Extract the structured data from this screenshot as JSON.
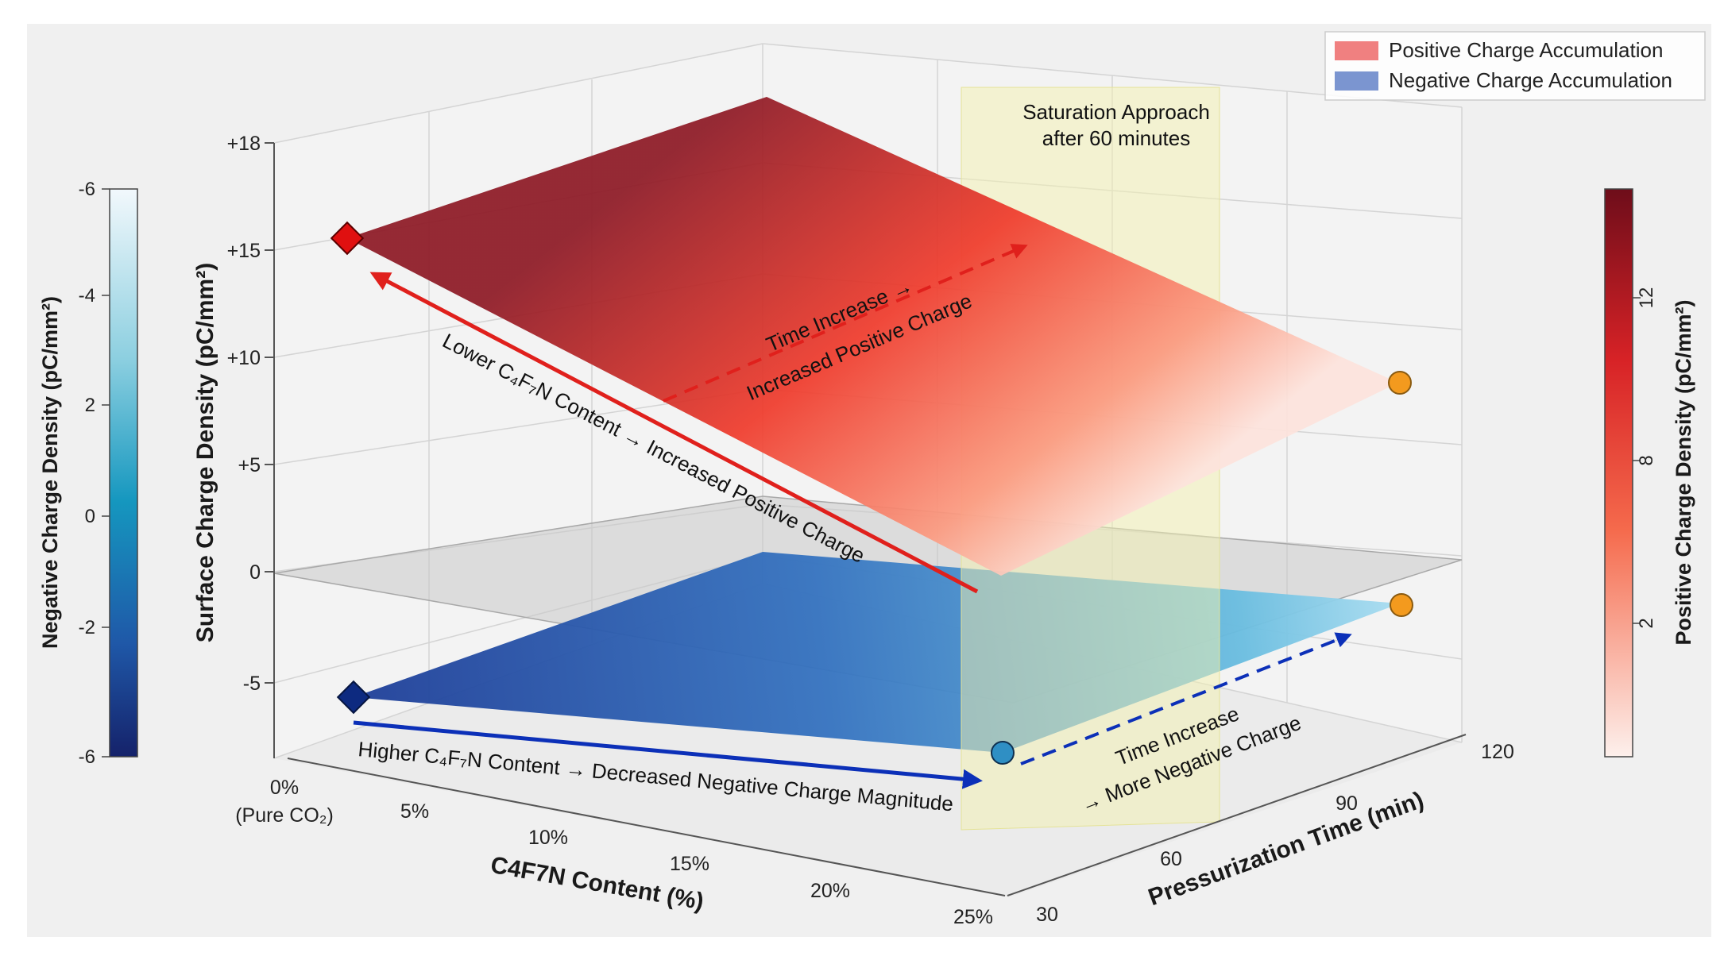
{
  "chart_data": {
    "type": "surface3d",
    "title": "",
    "xlabel": "C4F7N Content (%)",
    "ylabel": "Pressurization Time (min)",
    "zlabel": "Surface Charge Density (pC/mm²)",
    "x_ticks": [
      "0%",
      "(Pure CO₂)",
      "5%",
      "10%",
      "15%",
      "20%",
      "25%"
    ],
    "y_ticks": [
      "30",
      "60",
      "90",
      "120"
    ],
    "z_ticks": [
      "+18",
      "+15",
      "+10",
      "+5",
      "0",
      "-5"
    ],
    "xlim": [
      0,
      25
    ],
    "ylim": [
      30,
      120
    ],
    "zlim": [
      -8,
      18
    ],
    "series": [
      {
        "name": "Positive Charge Accumulation",
        "corners": [
          {
            "x": 0,
            "y": 30,
            "z": 15.5
          },
          {
            "x": 0,
            "y": 120,
            "z": 18.5
          },
          {
            "x": 25,
            "y": 120,
            "z": 9.5
          },
          {
            "x": 25,
            "y": 30,
            "z": 0
          }
        ],
        "markers": [
          {
            "x": 0,
            "y": 30,
            "z": 15.5,
            "shape": "diamond",
            "color": "#e01010"
          },
          {
            "x": 25,
            "y": 120,
            "z": 9.5,
            "shape": "circle",
            "color": "#f39a1e"
          }
        ]
      },
      {
        "name": "Negative Charge Accumulation",
        "corners": [
          {
            "x": 0,
            "y": 30,
            "z": -5.5
          },
          {
            "x": 0,
            "y": 120,
            "z": 1.2
          },
          {
            "x": 25,
            "y": 120,
            "z": -1.2
          },
          {
            "x": 25,
            "y": 30,
            "z": -7.2
          }
        ],
        "markers": [
          {
            "x": 0,
            "y": 30,
            "z": -5.5,
            "shape": "diamond",
            "color": "#0d2a80"
          },
          {
            "x": 25,
            "y": 30,
            "z": -7.2,
            "shape": "circle",
            "color": "#2f8fc4"
          },
          {
            "x": 25,
            "y": 120,
            "z": -1.2,
            "shape": "circle",
            "color": "#f39a1e"
          }
        ]
      }
    ],
    "zero_plane": {
      "z": 0
    },
    "saturation_region": {
      "y_start": 60,
      "label_line1": "Saturation Approach",
      "label_line2": "after 60 minutes"
    },
    "annotations": {
      "lower_c4f7n": "Lower C₄F₇N Content → Increased Positive Charge",
      "time_pos_line1": "Time Increase →",
      "time_pos_line2": "Increased Positive Charge",
      "higher_c4f7n": "Higher C₄F₇N Content → Decreased Negative Charge Magnitude",
      "time_neg_line1": "Time Increase",
      "time_neg_line2": "→ More Negative Charge"
    },
    "colorbar_negative": {
      "label": "Negative Charge Density (pC/mm²)",
      "ticks": [
        "-6",
        "-4",
        "2",
        "0",
        "-2",
        "-6"
      ]
    },
    "colorbar_positive": {
      "label": "Positive Charge Density (pC/mm²)",
      "ticks": [
        "12",
        "8",
        "2"
      ]
    },
    "legend": {
      "position": "top-right",
      "entries": [
        {
          "label": "Positive Charge Accumulation",
          "color": "#f08080"
        },
        {
          "label": "Negative Charge Accumulation",
          "color": "#7b95d0"
        }
      ]
    }
  }
}
